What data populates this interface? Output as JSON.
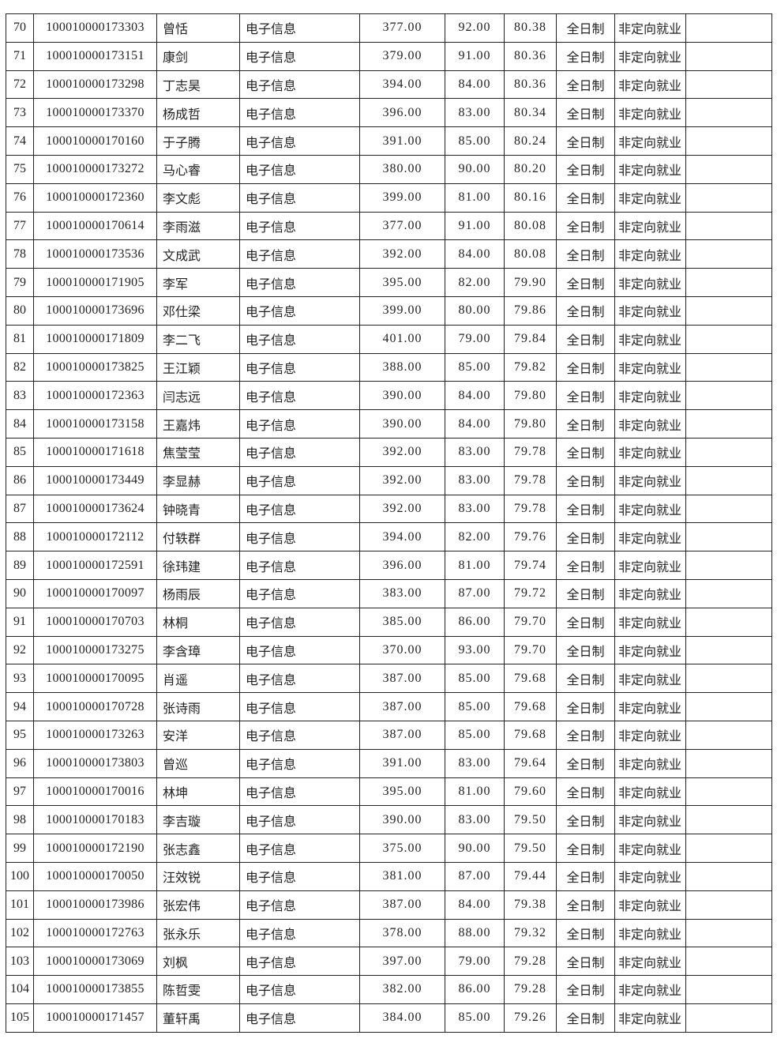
{
  "table": {
    "rows": [
      [
        "70",
        "100010000173303",
        "曾恬",
        "电子信息",
        "377.00",
        "92.00",
        "80.38",
        "全日制",
        "非定向就业",
        ""
      ],
      [
        "71",
        "100010000173151",
        "康剑",
        "电子信息",
        "379.00",
        "91.00",
        "80.36",
        "全日制",
        "非定向就业",
        ""
      ],
      [
        "72",
        "100010000173298",
        "丁志昊",
        "电子信息",
        "394.00",
        "84.00",
        "80.36",
        "全日制",
        "非定向就业",
        ""
      ],
      [
        "73",
        "100010000173370",
        "杨成哲",
        "电子信息",
        "396.00",
        "83.00",
        "80.34",
        "全日制",
        "非定向就业",
        ""
      ],
      [
        "74",
        "100010000170160",
        "于子腾",
        "电子信息",
        "391.00",
        "85.00",
        "80.24",
        "全日制",
        "非定向就业",
        ""
      ],
      [
        "75",
        "100010000173272",
        "马心睿",
        "电子信息",
        "380.00",
        "90.00",
        "80.20",
        "全日制",
        "非定向就业",
        ""
      ],
      [
        "76",
        "100010000172360",
        "李文彪",
        "电子信息",
        "399.00",
        "81.00",
        "80.16",
        "全日制",
        "非定向就业",
        ""
      ],
      [
        "77",
        "100010000170614",
        "李雨滋",
        "电子信息",
        "377.00",
        "91.00",
        "80.08",
        "全日制",
        "非定向就业",
        ""
      ],
      [
        "78",
        "100010000173536",
        "文成武",
        "电子信息",
        "392.00",
        "84.00",
        "80.08",
        "全日制",
        "非定向就业",
        ""
      ],
      [
        "79",
        "100010000171905",
        "李军",
        "电子信息",
        "395.00",
        "82.00",
        "79.90",
        "全日制",
        "非定向就业",
        ""
      ],
      [
        "80",
        "100010000173696",
        "邓仕梁",
        "电子信息",
        "399.00",
        "80.00",
        "79.86",
        "全日制",
        "非定向就业",
        ""
      ],
      [
        "81",
        "100010000171809",
        "李二飞",
        "电子信息",
        "401.00",
        "79.00",
        "79.84",
        "全日制",
        "非定向就业",
        ""
      ],
      [
        "82",
        "100010000173825",
        "王江颖",
        "电子信息",
        "388.00",
        "85.00",
        "79.82",
        "全日制",
        "非定向就业",
        ""
      ],
      [
        "83",
        "100010000172363",
        "闫志远",
        "电子信息",
        "390.00",
        "84.00",
        "79.80",
        "全日制",
        "非定向就业",
        ""
      ],
      [
        "84",
        "100010000173158",
        "王嘉炜",
        "电子信息",
        "390.00",
        "84.00",
        "79.80",
        "全日制",
        "非定向就业",
        ""
      ],
      [
        "85",
        "100010000171618",
        "焦莹莹",
        "电子信息",
        "392.00",
        "83.00",
        "79.78",
        "全日制",
        "非定向就业",
        ""
      ],
      [
        "86",
        "100010000173449",
        "李显赫",
        "电子信息",
        "392.00",
        "83.00",
        "79.78",
        "全日制",
        "非定向就业",
        ""
      ],
      [
        "87",
        "100010000173624",
        "钟晓青",
        "电子信息",
        "392.00",
        "83.00",
        "79.78",
        "全日制",
        "非定向就业",
        ""
      ],
      [
        "88",
        "100010000172112",
        "付轶群",
        "电子信息",
        "394.00",
        "82.00",
        "79.76",
        "全日制",
        "非定向就业",
        ""
      ],
      [
        "89",
        "100010000172591",
        "徐玮建",
        "电子信息",
        "396.00",
        "81.00",
        "79.74",
        "全日制",
        "非定向就业",
        ""
      ],
      [
        "90",
        "100010000170097",
        "杨雨辰",
        "电子信息",
        "383.00",
        "87.00",
        "79.72",
        "全日制",
        "非定向就业",
        ""
      ],
      [
        "91",
        "100010000170703",
        "林桐",
        "电子信息",
        "385.00",
        "86.00",
        "79.70",
        "全日制",
        "非定向就业",
        ""
      ],
      [
        "92",
        "100010000173275",
        "李含璋",
        "电子信息",
        "370.00",
        "93.00",
        "79.70",
        "全日制",
        "非定向就业",
        ""
      ],
      [
        "93",
        "100010000170095",
        "肖遥",
        "电子信息",
        "387.00",
        "85.00",
        "79.68",
        "全日制",
        "非定向就业",
        ""
      ],
      [
        "94",
        "100010000170728",
        "张诗雨",
        "电子信息",
        "387.00",
        "85.00",
        "79.68",
        "全日制",
        "非定向就业",
        ""
      ],
      [
        "95",
        "100010000173263",
        "安洋",
        "电子信息",
        "387.00",
        "85.00",
        "79.68",
        "全日制",
        "非定向就业",
        ""
      ],
      [
        "96",
        "100010000173803",
        "曾巡",
        "电子信息",
        "391.00",
        "83.00",
        "79.64",
        "全日制",
        "非定向就业",
        ""
      ],
      [
        "97",
        "100010000170016",
        "林坤",
        "电子信息",
        "395.00",
        "81.00",
        "79.60",
        "全日制",
        "非定向就业",
        ""
      ],
      [
        "98",
        "100010000170183",
        "李吉璇",
        "电子信息",
        "390.00",
        "83.00",
        "79.50",
        "全日制",
        "非定向就业",
        ""
      ],
      [
        "99",
        "100010000172190",
        "张志鑫",
        "电子信息",
        "375.00",
        "90.00",
        "79.50",
        "全日制",
        "非定向就业",
        ""
      ],
      [
        "100",
        "100010000170050",
        "汪效锐",
        "电子信息",
        "381.00",
        "87.00",
        "79.44",
        "全日制",
        "非定向就业",
        ""
      ],
      [
        "101",
        "100010000173986",
        "张宏伟",
        "电子信息",
        "387.00",
        "84.00",
        "79.38",
        "全日制",
        "非定向就业",
        ""
      ],
      [
        "102",
        "100010000172763",
        "张永乐",
        "电子信息",
        "378.00",
        "88.00",
        "79.32",
        "全日制",
        "非定向就业",
        ""
      ],
      [
        "103",
        "100010000173069",
        "刘枫",
        "电子信息",
        "397.00",
        "79.00",
        "79.28",
        "全日制",
        "非定向就业",
        ""
      ],
      [
        "104",
        "100010000173855",
        "陈哲雯",
        "电子信息",
        "382.00",
        "86.00",
        "79.28",
        "全日制",
        "非定向就业",
        ""
      ],
      [
        "105",
        "100010000171457",
        "董轩禹",
        "电子信息",
        "384.00",
        "85.00",
        "79.26",
        "全日制",
        "非定向就业",
        ""
      ]
    ]
  }
}
